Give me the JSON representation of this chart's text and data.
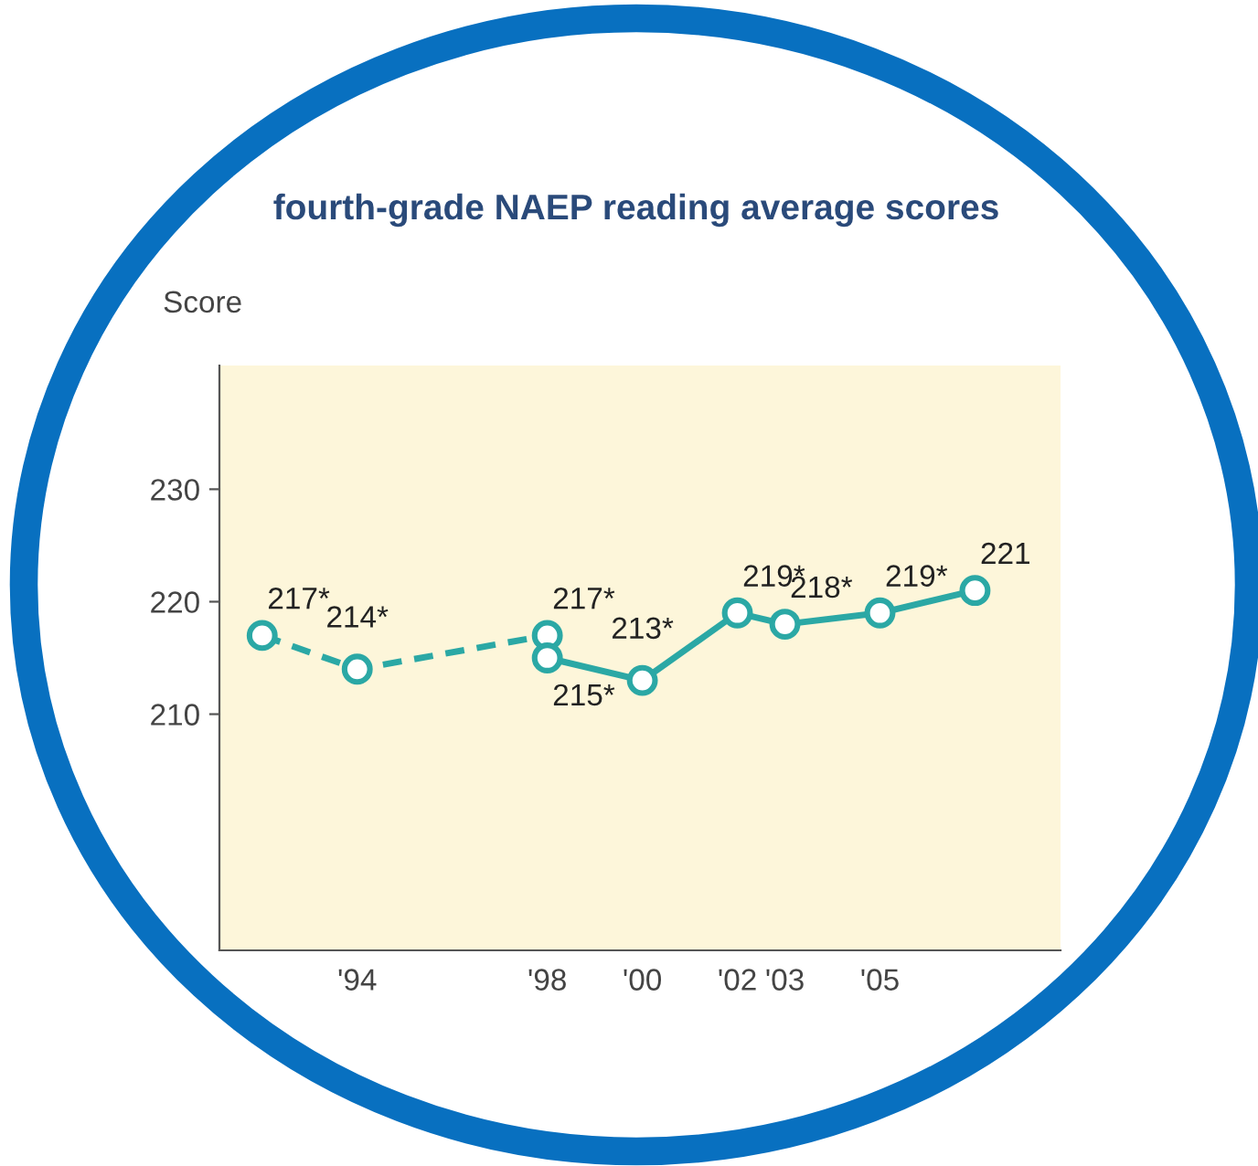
{
  "chart_data": {
    "type": "line",
    "title": "fourth-grade NAEP reading average scores",
    "ylabel": "Score",
    "xlim": [
      1991.1,
      2008.8
    ],
    "ylim": [
      189,
      241
    ],
    "yticks": [
      210,
      220,
      230
    ],
    "xticks": [
      {
        "value": 1994,
        "label": "'94"
      },
      {
        "value": 1998,
        "label": "'98"
      },
      {
        "value": 2000,
        "label": "'00"
      },
      {
        "value": 2002,
        "label": "'02"
      },
      {
        "value": 2003,
        "label": "'03"
      },
      {
        "value": 2005,
        "label": "'05"
      }
    ],
    "grid": false,
    "legend": false,
    "marker": "circle",
    "series": [
      {
        "color": "#2ba8a5",
        "line_style": "dashed",
        "x": [
          1992,
          1994,
          1998
        ],
        "values": [
          217,
          214,
          217
        ],
        "value_labels": [
          "217*",
          "214*",
          "217*"
        ]
      },
      {
        "color": "#2ba8a5",
        "line_style": "solid",
        "x": [
          1998,
          2000,
          2002,
          2003,
          2005,
          2007
        ],
        "values": [
          215,
          213,
          219,
          218,
          219,
          221
        ],
        "value_labels": [
          "215*",
          "213*",
          "219*",
          "218*",
          "219*",
          "221"
        ]
      }
    ]
  }
}
